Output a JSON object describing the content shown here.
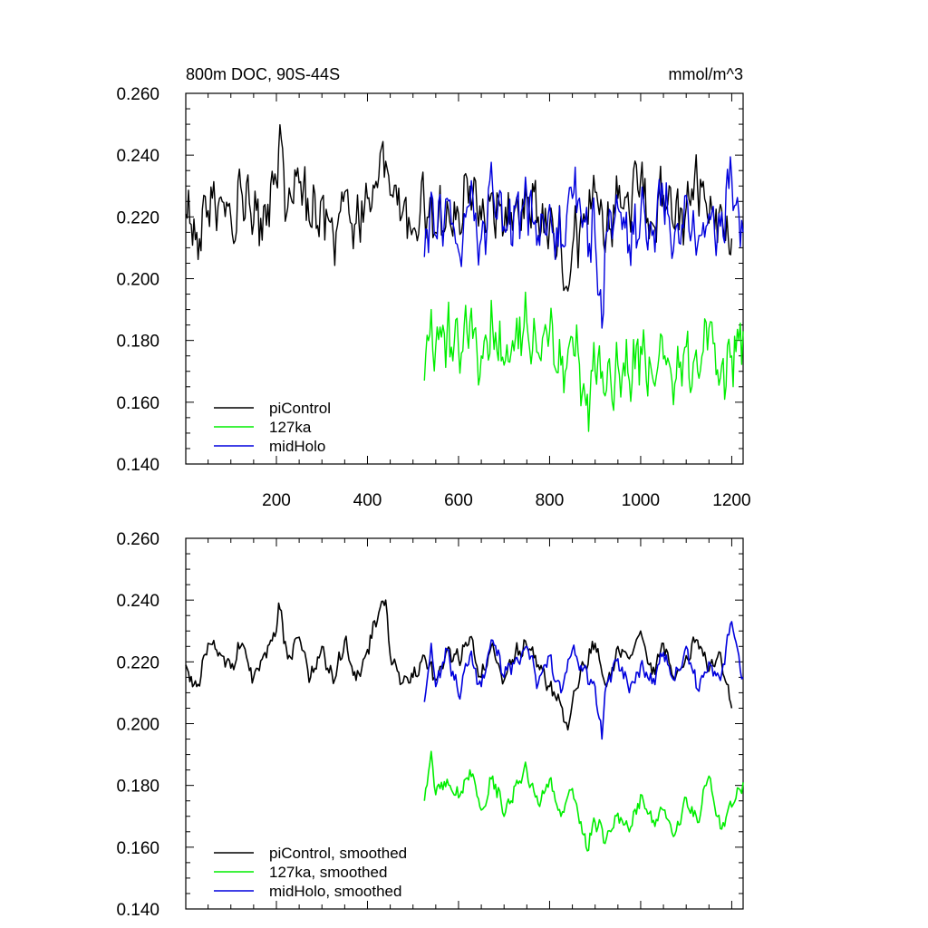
{
  "chart_data": [
    {
      "type": "line",
      "title": "800m DOC, 90S-44S",
      "units": "mmol/m^3",
      "xlim": [
        1,
        1225
      ],
      "ylim": [
        0.14,
        0.26
      ],
      "x_ticks": [
        "200",
        "400",
        "600",
        "800",
        "1000",
        "1200"
      ],
      "y_ticks": [
        "0.140",
        "0.160",
        "0.180",
        "0.200",
        "0.220",
        "0.240",
        "0.260"
      ],
      "legend_position": "bottom-left",
      "series": [
        {
          "name": "piControl",
          "color": "#000000",
          "x": [
            1,
            25,
            50,
            75,
            100,
            125,
            150,
            175,
            200,
            205,
            225,
            250,
            275,
            300,
            325,
            350,
            375,
            400,
            425,
            440,
            450,
            475,
            500,
            525,
            550,
            575,
            600,
            625,
            650,
            675,
            700,
            725,
            750,
            775,
            800,
            825,
            840,
            850,
            875,
            900,
            925,
            950,
            975,
            1000,
            1025,
            1050,
            1075,
            1100,
            1125,
            1150,
            1175,
            1195,
            1200
          ],
          "y": [
            0.221,
            0.215,
            0.222,
            0.226,
            0.22,
            0.227,
            0.218,
            0.224,
            0.231,
            0.242,
            0.223,
            0.231,
            0.217,
            0.226,
            0.214,
            0.228,
            0.218,
            0.226,
            0.233,
            0.238,
            0.227,
            0.22,
            0.216,
            0.223,
            0.215,
            0.225,
            0.221,
            0.23,
            0.219,
            0.228,
            0.216,
            0.224,
            0.226,
            0.22,
            0.217,
            0.212,
            0.196,
            0.21,
            0.221,
            0.228,
            0.215,
            0.226,
            0.221,
            0.232,
            0.218,
            0.227,
            0.216,
            0.223,
            0.229,
            0.218,
            0.224,
            0.208,
            0.213
          ]
        },
        {
          "name": "127ka",
          "color": "#00ee00",
          "x": [
            525,
            540,
            550,
            575,
            600,
            625,
            650,
            675,
            700,
            725,
            750,
            775,
            800,
            825,
            850,
            875,
            880,
            900,
            925,
            950,
            975,
            1000,
            1025,
            1050,
            1075,
            1100,
            1125,
            1150,
            1175,
            1200,
            1225
          ],
          "y": [
            0.167,
            0.19,
            0.178,
            0.183,
            0.177,
            0.186,
            0.175,
            0.184,
            0.172,
            0.181,
            0.186,
            0.176,
            0.183,
            0.172,
            0.181,
            0.166,
            0.159,
            0.17,
            0.164,
            0.172,
            0.167,
            0.178,
            0.169,
            0.174,
            0.166,
            0.178,
            0.17,
            0.184,
            0.168,
            0.175,
            0.183
          ]
        },
        {
          "name": "midHolo",
          "color": "#0000dd",
          "x": [
            525,
            540,
            550,
            575,
            600,
            625,
            650,
            675,
            700,
            725,
            750,
            775,
            800,
            825,
            850,
            875,
            900,
            915,
            925,
            950,
            975,
            1000,
            1025,
            1050,
            1075,
            1100,
            1125,
            1150,
            1175,
            1200,
            1225
          ],
          "y": [
            0.207,
            0.228,
            0.214,
            0.226,
            0.209,
            0.224,
            0.213,
            0.229,
            0.217,
            0.223,
            0.227,
            0.214,
            0.224,
            0.21,
            0.226,
            0.219,
            0.213,
            0.184,
            0.215,
            0.223,
            0.211,
            0.22,
            0.214,
            0.225,
            0.215,
            0.227,
            0.211,
            0.221,
            0.217,
            0.233,
            0.215
          ]
        }
      ]
    },
    {
      "type": "line",
      "xlim": [
        1,
        1225
      ],
      "ylim": [
        0.14,
        0.26
      ],
      "y_ticks": [
        "0.140",
        "0.160",
        "0.180",
        "0.200",
        "0.220",
        "0.240",
        "0.260"
      ],
      "legend_position": "bottom-left",
      "series": [
        {
          "name": "piControl, smoothed",
          "color": "#000000",
          "x": [
            1,
            25,
            50,
            75,
            100,
            125,
            150,
            175,
            200,
            205,
            225,
            250,
            275,
            300,
            325,
            350,
            375,
            400,
            425,
            440,
            450,
            475,
            500,
            525,
            550,
            575,
            600,
            625,
            650,
            675,
            700,
            725,
            750,
            775,
            800,
            825,
            840,
            850,
            875,
            900,
            925,
            950,
            975,
            1000,
            1025,
            1050,
            1075,
            1100,
            1125,
            1150,
            1175,
            1195,
            1200
          ],
          "y": [
            0.219,
            0.212,
            0.226,
            0.223,
            0.218,
            0.226,
            0.215,
            0.223,
            0.23,
            0.239,
            0.221,
            0.228,
            0.215,
            0.225,
            0.213,
            0.227,
            0.214,
            0.224,
            0.236,
            0.24,
            0.222,
            0.213,
            0.215,
            0.222,
            0.214,
            0.224,
            0.221,
            0.228,
            0.215,
            0.226,
            0.214,
            0.223,
            0.225,
            0.219,
            0.212,
            0.206,
            0.198,
            0.207,
            0.219,
            0.226,
            0.212,
            0.225,
            0.221,
            0.23,
            0.216,
            0.226,
            0.214,
            0.222,
            0.227,
            0.217,
            0.223,
            0.208,
            0.205
          ]
        },
        {
          "name": "127ka, smoothed",
          "color": "#00ee00",
          "x": [
            525,
            540,
            550,
            575,
            600,
            625,
            650,
            675,
            700,
            725,
            750,
            775,
            800,
            825,
            850,
            875,
            880,
            900,
            925,
            950,
            975,
            1000,
            1025,
            1050,
            1075,
            1100,
            1125,
            1150,
            1175,
            1200,
            1225
          ],
          "y": [
            0.175,
            0.191,
            0.177,
            0.182,
            0.176,
            0.185,
            0.172,
            0.183,
            0.17,
            0.18,
            0.185,
            0.174,
            0.182,
            0.17,
            0.179,
            0.164,
            0.16,
            0.168,
            0.163,
            0.171,
            0.165,
            0.177,
            0.168,
            0.172,
            0.164,
            0.176,
            0.168,
            0.183,
            0.166,
            0.173,
            0.181
          ]
        },
        {
          "name": "midHolo, smoothed",
          "color": "#0000dd",
          "x": [
            525,
            540,
            550,
            575,
            600,
            625,
            650,
            675,
            700,
            725,
            750,
            775,
            800,
            825,
            850,
            875,
            900,
            915,
            925,
            950,
            975,
            1000,
            1025,
            1050,
            1075,
            1100,
            1125,
            1150,
            1175,
            1200,
            1225
          ],
          "y": [
            0.207,
            0.226,
            0.212,
            0.224,
            0.209,
            0.222,
            0.212,
            0.227,
            0.215,
            0.221,
            0.225,
            0.213,
            0.222,
            0.21,
            0.224,
            0.218,
            0.212,
            0.195,
            0.213,
            0.221,
            0.21,
            0.219,
            0.213,
            0.223,
            0.214,
            0.225,
            0.211,
            0.22,
            0.214,
            0.233,
            0.215
          ]
        }
      ]
    }
  ]
}
